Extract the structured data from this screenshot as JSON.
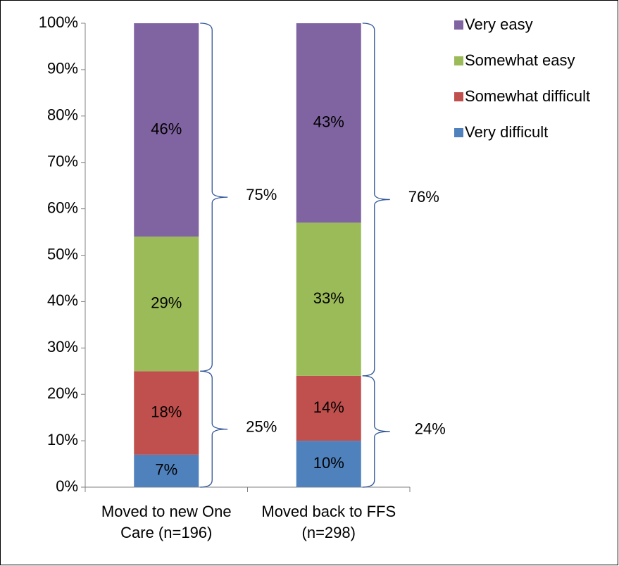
{
  "chart_data": {
    "type": "stacked_bar",
    "categories": [
      "Moved to new One Care (n=196)",
      "Moved back to FFS (n=298)"
    ],
    "series": [
      {
        "name": "Very difficult",
        "color": "#4f81bd",
        "values": [
          7,
          10
        ],
        "value_labels": [
          "7%",
          "10%"
        ]
      },
      {
        "name": "Somewhat difficult",
        "color": "#c0504d",
        "values": [
          18,
          14
        ],
        "value_labels": [
          "18%",
          "14%"
        ]
      },
      {
        "name": "Somewhat easy",
        "color": "#9bbb59",
        "values": [
          29,
          33
        ],
        "value_labels": [
          "29%",
          "33%"
        ]
      },
      {
        "name": "Very easy",
        "color": "#8064a2",
        "values": [
          46,
          43
        ],
        "value_labels": [
          "46%",
          "43%"
        ]
      }
    ],
    "brace_values": [
      [
        25,
        24
      ],
      [
        75,
        76
      ]
    ],
    "brace_labels": [
      [
        "25%",
        "24%"
      ],
      [
        "75%",
        "76%"
      ]
    ],
    "ylim": [
      0,
      100
    ],
    "yticks": [
      {
        "value": 0,
        "label": "0%"
      },
      {
        "value": 10,
        "label": "10%"
      },
      {
        "value": 20,
        "label": "20%"
      },
      {
        "value": 30,
        "label": "30%"
      },
      {
        "value": 40,
        "label": "40%"
      },
      {
        "value": 50,
        "label": "50%"
      },
      {
        "value": 60,
        "label": "60%"
      },
      {
        "value": 70,
        "label": "70%"
      },
      {
        "value": 80,
        "label": "80%"
      },
      {
        "value": 90,
        "label": "90%"
      },
      {
        "value": 100,
        "label": "100%"
      }
    ],
    "legend": "upper right",
    "grid": false
  }
}
